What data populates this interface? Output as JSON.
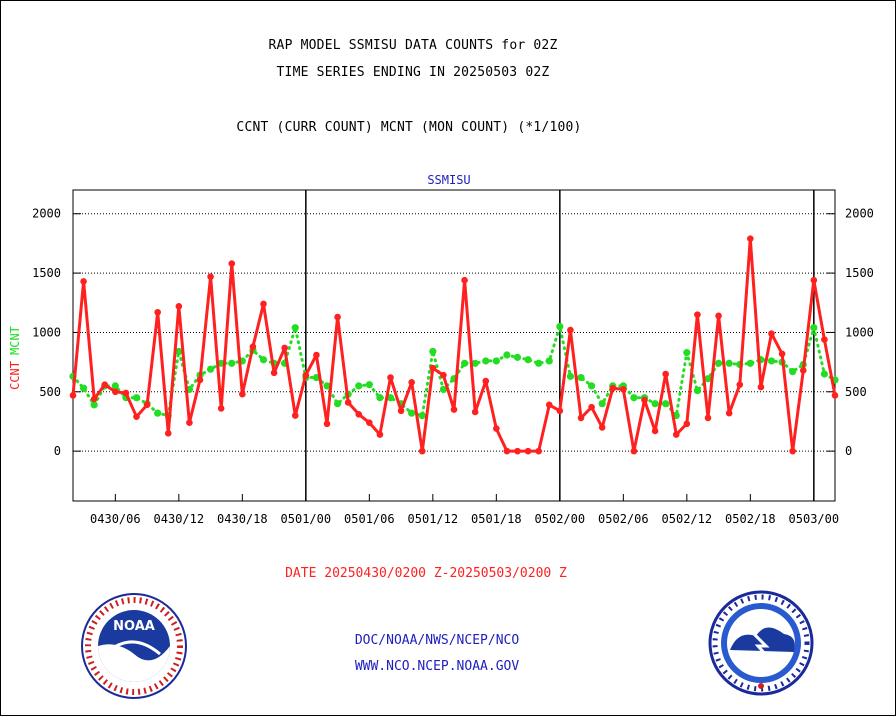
{
  "title_line1": "RAP MODEL SSMISU DATA COUNTS for 02Z",
  "title_line2": "TIME SERIES ENDING IN 20250503 02Z",
  "title_line3": "CCNT (CURR COUNT) MCNT (MON COUNT) (*1/100)",
  "date_range": "DATE 20250430/0200 Z-20250503/0200 Z",
  "footer_org": "DOC/NOAA/NWS/NCEP/NCO",
  "footer_url": "WWW.NCO.NCEP.NOAA.GOV",
  "logos": {
    "left": "noaa-logo",
    "right": "nws-logo"
  },
  "colors": {
    "ccnt": "#ff2020",
    "mcnt": "#22dd22",
    "panel_title": "#2020c0",
    "frame": "#000000"
  },
  "chart_data": {
    "type": "line",
    "panel_title": "SSMISU",
    "ylabel_ccnt": "CCNT",
    "ylabel_mcnt": "MCNT",
    "ylim": [
      -420,
      2200
    ],
    "yticks": [
      0,
      500,
      1000,
      1500,
      2000
    ],
    "grid": true,
    "xlim_hours": [
      0,
      72
    ],
    "x_tick_labels": [
      "0430/06",
      "0430/12",
      "0430/18",
      "0501/00",
      "0501/06",
      "0501/12",
      "0501/18",
      "0502/00",
      "0502/06",
      "0502/12",
      "0502/18",
      "0503/00"
    ],
    "day_boundaries": [
      "0501/00",
      "0502/00",
      "0503/00"
    ],
    "series": [
      {
        "name": "CCNT",
        "values": [
          470,
          1430,
          440,
          560,
          500,
          490,
          290,
          390,
          1170,
          150,
          1220,
          240,
          600,
          1470,
          360,
          1580,
          480,
          880,
          1240,
          660,
          870,
          300,
          640,
          810,
          230,
          1130,
          410,
          310,
          240,
          140,
          620,
          340,
          580,
          0,
          700,
          640,
          350,
          1440,
          330,
          590,
          190,
          0,
          0,
          0,
          0,
          390,
          340,
          1020,
          280,
          370,
          200,
          530,
          520,
          0,
          430,
          170,
          650,
          140,
          230,
          1150,
          280,
          1140,
          320,
          560,
          1790,
          540,
          990,
          820,
          0,
          680,
          1440,
          940,
          470
        ]
      },
      {
        "name": "MCNT",
        "values": [
          630,
          530,
          390,
          550,
          550,
          450,
          450,
          400,
          320,
          300,
          840,
          520,
          640,
          690,
          740,
          740,
          760,
          850,
          770,
          740,
          740,
          1040,
          620,
          620,
          550,
          400,
          480,
          550,
          560,
          450,
          450,
          400,
          320,
          300,
          840,
          520,
          610,
          740,
          740,
          760,
          760,
          810,
          790,
          770,
          740,
          760,
          1050,
          630,
          620,
          550,
          400,
          550,
          550,
          450,
          450,
          400,
          400,
          300,
          830,
          510,
          610,
          740,
          740,
          730,
          740,
          770,
          760,
          750,
          670,
          730,
          1040,
          650,
          600
        ]
      }
    ]
  }
}
